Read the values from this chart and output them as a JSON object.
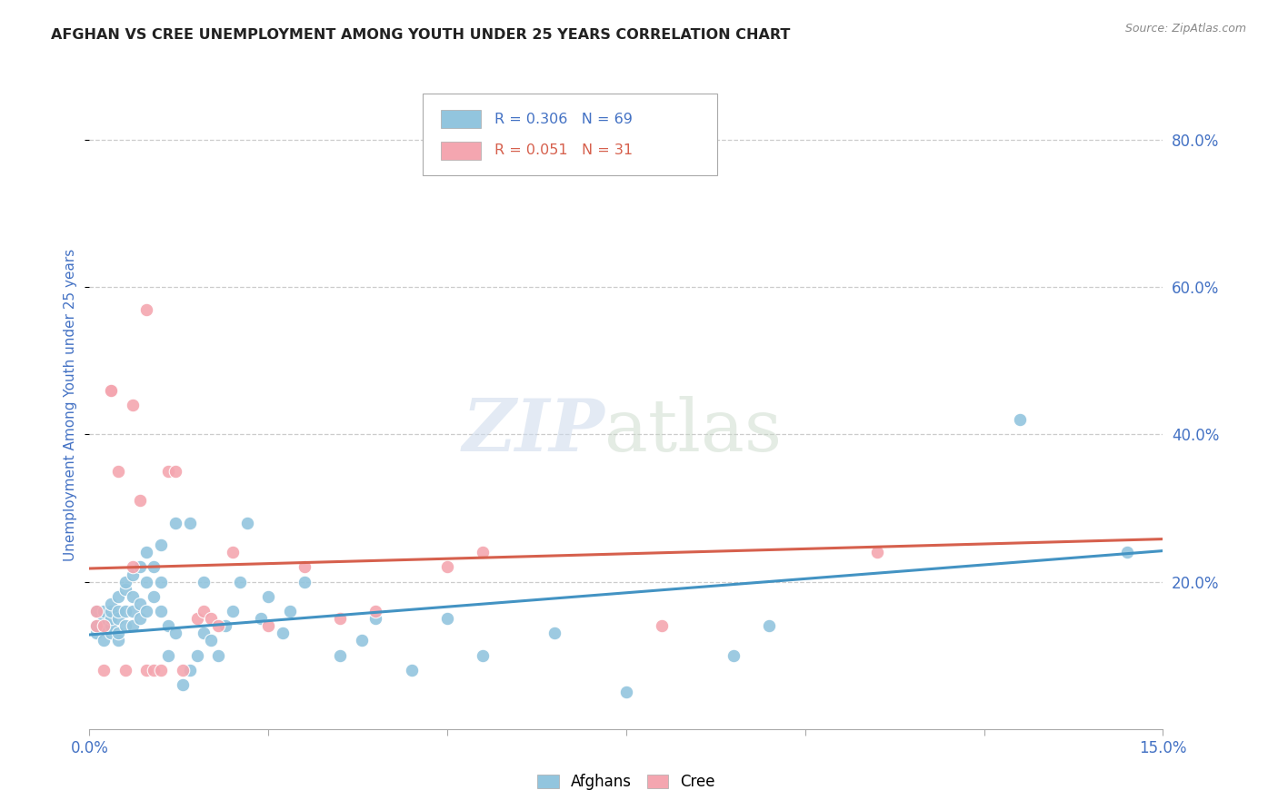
{
  "title": "AFGHAN VS CREE UNEMPLOYMENT AMONG YOUTH UNDER 25 YEARS CORRELATION CHART",
  "source": "Source: ZipAtlas.com",
  "ylabel": "Unemployment Among Youth under 25 years",
  "right_yticks": [
    0.2,
    0.4,
    0.6,
    0.8
  ],
  "right_yticklabels": [
    "20.0%",
    "40.0%",
    "60.0%",
    "80.0%"
  ],
  "legend_afghans_R": "0.306",
  "legend_afghans_N": "69",
  "legend_cree_R": "0.051",
  "legend_cree_N": "31",
  "afghans_color": "#92c5de",
  "cree_color": "#f4a6b0",
  "afghans_line_color": "#4393c3",
  "cree_line_color": "#d6604d",
  "title_color": "#222222",
  "axis_label_color": "#4472c4",
  "xlim": [
    0.0,
    0.15
  ],
  "ylim": [
    0.0,
    0.88
  ],
  "afghans_x": [
    0.001,
    0.001,
    0.001,
    0.002,
    0.002,
    0.002,
    0.002,
    0.003,
    0.003,
    0.003,
    0.003,
    0.003,
    0.004,
    0.004,
    0.004,
    0.004,
    0.004,
    0.005,
    0.005,
    0.005,
    0.005,
    0.006,
    0.006,
    0.006,
    0.006,
    0.007,
    0.007,
    0.007,
    0.008,
    0.008,
    0.008,
    0.009,
    0.009,
    0.01,
    0.01,
    0.01,
    0.011,
    0.011,
    0.012,
    0.012,
    0.013,
    0.014,
    0.014,
    0.015,
    0.016,
    0.016,
    0.017,
    0.018,
    0.019,
    0.02,
    0.021,
    0.022,
    0.024,
    0.025,
    0.027,
    0.028,
    0.03,
    0.035,
    0.038,
    0.04,
    0.045,
    0.05,
    0.055,
    0.065,
    0.075,
    0.09,
    0.095,
    0.13,
    0.145
  ],
  "afghans_y": [
    0.13,
    0.14,
    0.16,
    0.12,
    0.14,
    0.15,
    0.16,
    0.13,
    0.14,
    0.15,
    0.16,
    0.17,
    0.12,
    0.13,
    0.15,
    0.16,
    0.18,
    0.14,
    0.16,
    0.19,
    0.2,
    0.14,
    0.16,
    0.18,
    0.21,
    0.15,
    0.17,
    0.22,
    0.16,
    0.2,
    0.24,
    0.18,
    0.22,
    0.16,
    0.2,
    0.25,
    0.1,
    0.14,
    0.13,
    0.28,
    0.06,
    0.08,
    0.28,
    0.1,
    0.13,
    0.2,
    0.12,
    0.1,
    0.14,
    0.16,
    0.2,
    0.28,
    0.15,
    0.18,
    0.13,
    0.16,
    0.2,
    0.1,
    0.12,
    0.15,
    0.08,
    0.15,
    0.1,
    0.13,
    0.05,
    0.1,
    0.14,
    0.42,
    0.24
  ],
  "cree_x": [
    0.001,
    0.001,
    0.002,
    0.002,
    0.003,
    0.003,
    0.004,
    0.005,
    0.006,
    0.006,
    0.007,
    0.008,
    0.008,
    0.009,
    0.01,
    0.011,
    0.012,
    0.013,
    0.015,
    0.016,
    0.017,
    0.018,
    0.02,
    0.025,
    0.03,
    0.035,
    0.04,
    0.05,
    0.055,
    0.08,
    0.11
  ],
  "cree_y": [
    0.14,
    0.16,
    0.08,
    0.14,
    0.46,
    0.46,
    0.35,
    0.08,
    0.44,
    0.22,
    0.31,
    0.08,
    0.57,
    0.08,
    0.08,
    0.35,
    0.35,
    0.08,
    0.15,
    0.16,
    0.15,
    0.14,
    0.24,
    0.14,
    0.22,
    0.15,
    0.16,
    0.22,
    0.24,
    0.14,
    0.24
  ],
  "afghans_trend": [
    0.128,
    0.242
  ],
  "cree_trend": [
    0.218,
    0.258
  ],
  "xtick_positions": [
    0.0,
    0.025,
    0.05,
    0.075,
    0.1,
    0.125,
    0.15
  ]
}
